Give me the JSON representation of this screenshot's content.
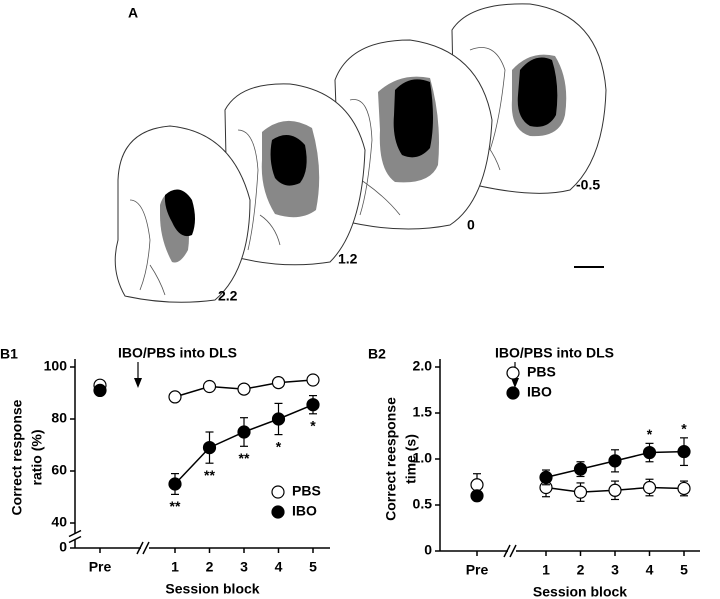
{
  "panel_a": {
    "label": "A",
    "section_labels": [
      "2.2",
      "1.2",
      "0",
      "-0.5"
    ]
  },
  "chart_data": [
    {
      "type": "line",
      "panel": "B1",
      "annotation": "IBO/PBS into DLS",
      "ylabel": [
        "Correct response",
        "ratio (%)"
      ],
      "xlabel": "Session block",
      "pre_category": "Pre",
      "categories": [
        "1",
        "2",
        "3",
        "4",
        "5"
      ],
      "ylim": [
        40,
        100
      ],
      "yticks": [
        40,
        60,
        80,
        100
      ],
      "y_break_tick": 0,
      "legend": "lower right",
      "significance_position": "below",
      "series": [
        {
          "name": "PBS",
          "color": "#000000",
          "marker_fill": "#ffffff",
          "pre_value": 93,
          "pre_error": 1,
          "values": [
            88.5,
            92.5,
            91.5,
            94,
            95
          ],
          "errors": [
            1.5,
            1.5,
            1.5,
            1,
            1
          ]
        },
        {
          "name": "IBO",
          "color": "#000000",
          "marker_fill": "#000000",
          "pre_value": 91,
          "pre_error": 1,
          "values": [
            55,
            69,
            75,
            80,
            85.5
          ],
          "errors": [
            4,
            6,
            5.5,
            6,
            3.5
          ]
        }
      ],
      "significance": [
        "**",
        "**",
        "**",
        "*",
        "*"
      ]
    },
    {
      "type": "line",
      "panel": "B2",
      "annotation": "IBO/PBS into DLS",
      "ylabel": [
        "Correct reesponse",
        "time (s)"
      ],
      "xlabel": "Session block",
      "pre_category": "Pre",
      "categories": [
        "1",
        "2",
        "3",
        "4",
        "5"
      ],
      "ylim": [
        0,
        2
      ],
      "yticks": [
        0,
        0.5,
        {
          "value": 1,
          "label": "1.0"
        },
        1.5,
        {
          "value": 2,
          "label": "2.0"
        }
      ],
      "legend": "upper right",
      "significance_position": "above",
      "series": [
        {
          "name": "PBS",
          "color": "#000000",
          "marker_fill": "#ffffff",
          "pre_value": 0.72,
          "pre_error": 0.12,
          "values": [
            0.69,
            0.64,
            0.66,
            0.69,
            0.68
          ],
          "errors": [
            0.1,
            0.1,
            0.1,
            0.09,
            0.08
          ]
        },
        {
          "name": "IBO",
          "color": "#000000",
          "marker_fill": "#000000",
          "pre_value": 0.6,
          "pre_error": 0.05,
          "values": [
            0.8,
            0.89,
            0.98,
            1.07,
            1.08
          ],
          "errors": [
            0.08,
            0.08,
            0.12,
            0.1,
            0.15
          ]
        }
      ],
      "significance": [
        null,
        null,
        null,
        "*",
        "*"
      ]
    }
  ]
}
